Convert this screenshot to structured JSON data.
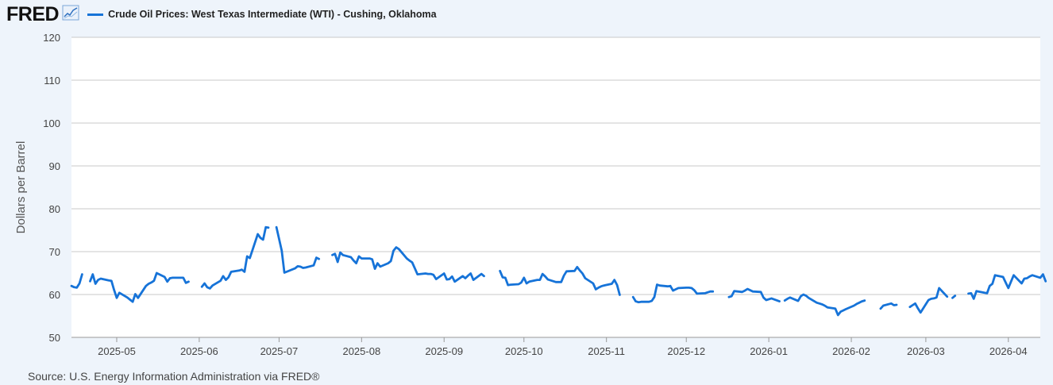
{
  "header": {
    "logo_text": "FRED",
    "logo_icon": "line-chart-icon"
  },
  "colors": {
    "series": "#1673d8",
    "grid": "#c8c8c8",
    "plot_background": "#ffffff",
    "page_background": "#eef4fb"
  },
  "source": "Source: U.S. Energy Information Administration via FRED®",
  "chart_data": {
    "type": "line",
    "title": "Crude Oil Prices: West Texas Intermediate (WTI) - Cushing, Oklahoma",
    "ylabel": "Dollars per Barrel",
    "xlabel": "",
    "ylim": [
      50,
      120
    ],
    "yticks": [
      50,
      60,
      70,
      80,
      90,
      100,
      110,
      120
    ],
    "xlim": [
      "2025-04-14",
      "2026-04-13"
    ],
    "xticks": [
      "2025-05",
      "2025-06",
      "2025-07",
      "2025-08",
      "2025-09",
      "2025-10",
      "2025-11",
      "2025-12",
      "2026-01",
      "2026-02",
      "2026-03",
      "2026-04"
    ],
    "grid": true,
    "legend": "top-left",
    "series": [
      {
        "name": "Crude Oil Prices: West Texas Intermediate (WTI) - Cushing, Oklahoma",
        "segments": [
          [
            [
              "2025-04-14",
              62.0
            ],
            [
              "2025-04-15",
              61.7
            ],
            [
              "2025-04-16",
              61.6
            ],
            [
              "2025-04-17",
              62.6
            ],
            [
              "2025-04-18",
              64.7
            ]
          ],
          [
            [
              "2025-04-21",
              63.1
            ],
            [
              "2025-04-22",
              64.7
            ],
            [
              "2025-04-23",
              62.5
            ],
            [
              "2025-04-24",
              63.4
            ],
            [
              "2025-04-25",
              63.7
            ],
            [
              "2025-04-28",
              63.3
            ],
            [
              "2025-04-29",
              63.2
            ],
            [
              "2025-04-30",
              61.1
            ],
            [
              "2025-05-01",
              59.2
            ],
            [
              "2025-05-02",
              60.4
            ],
            [
              "2025-05-05",
              59.3
            ],
            [
              "2025-05-06",
              58.8
            ],
            [
              "2025-05-07",
              58.3
            ],
            [
              "2025-05-08",
              60.1
            ],
            [
              "2025-05-09",
              59.2
            ],
            [
              "2025-05-12",
              62.0
            ],
            [
              "2025-05-13",
              62.5
            ],
            [
              "2025-05-14",
              62.8
            ],
            [
              "2025-05-15",
              63.2
            ],
            [
              "2025-05-16",
              65.0
            ],
            [
              "2025-05-19",
              64.1
            ],
            [
              "2025-05-20",
              63.0
            ],
            [
              "2025-05-21",
              63.8
            ],
            [
              "2025-05-22",
              63.9
            ],
            [
              "2025-05-23",
              63.9
            ],
            [
              "2025-05-26",
              63.9
            ],
            [
              "2025-05-27",
              62.7
            ],
            [
              "2025-05-28",
              63.0
            ]
          ],
          [
            [
              "2025-06-02",
              61.8
            ],
            [
              "2025-06-03",
              62.6
            ],
            [
              "2025-06-04",
              61.7
            ],
            [
              "2025-06-05",
              61.4
            ],
            [
              "2025-06-06",
              62.1
            ],
            [
              "2025-06-09",
              63.2
            ],
            [
              "2025-06-10",
              64.3
            ],
            [
              "2025-06-11",
              63.4
            ],
            [
              "2025-06-12",
              64.0
            ],
            [
              "2025-06-13",
              65.3
            ],
            [
              "2025-06-16",
              65.6
            ],
            [
              "2025-06-17",
              65.8
            ],
            [
              "2025-06-18",
              65.3
            ],
            [
              "2025-06-19",
              68.9
            ],
            [
              "2025-06-20",
              68.5
            ],
            [
              "2025-06-23",
              74.1
            ],
            [
              "2025-06-24",
              73.2
            ],
            [
              "2025-06-25",
              72.8
            ],
            [
              "2025-06-26",
              75.7
            ],
            [
              "2025-06-27",
              75.6
            ]
          ],
          [
            [
              "2025-06-30",
              75.7
            ],
            [
              "2025-07-01",
              73.0
            ],
            [
              "2025-07-02",
              70.2
            ],
            [
              "2025-07-03",
              65.1
            ],
            [
              "2025-07-07",
              66.1
            ],
            [
              "2025-07-08",
              66.6
            ],
            [
              "2025-07-09",
              66.5
            ],
            [
              "2025-07-10",
              66.2
            ],
            [
              "2025-07-11",
              66.3
            ],
            [
              "2025-07-14",
              66.8
            ],
            [
              "2025-07-15",
              68.6
            ],
            [
              "2025-07-16",
              68.3
            ]
          ],
          [
            [
              "2025-07-21",
              69.2
            ],
            [
              "2025-07-22",
              69.5
            ],
            [
              "2025-07-23",
              67.6
            ],
            [
              "2025-07-24",
              69.8
            ],
            [
              "2025-07-25",
              69.2
            ],
            [
              "2025-07-28",
              68.7
            ],
            [
              "2025-07-29",
              67.9
            ],
            [
              "2025-07-30",
              67.3
            ],
            [
              "2025-07-31",
              68.9
            ],
            [
              "2025-08-01",
              68.4
            ],
            [
              "2025-08-04",
              68.4
            ],
            [
              "2025-08-05",
              68.2
            ],
            [
              "2025-08-06",
              66.0
            ],
            [
              "2025-08-07",
              67.3
            ],
            [
              "2025-08-08",
              66.5
            ],
            [
              "2025-08-11",
              67.3
            ],
            [
              "2025-08-12",
              67.8
            ],
            [
              "2025-08-13",
              70.2
            ],
            [
              "2025-08-14",
              71.0
            ],
            [
              "2025-08-15",
              70.6
            ],
            [
              "2025-08-18",
              68.4
            ],
            [
              "2025-08-19",
              67.9
            ],
            [
              "2025-08-20",
              67.5
            ],
            [
              "2025-08-21",
              66.1
            ],
            [
              "2025-08-22",
              64.7
            ],
            [
              "2025-08-25",
              64.9
            ],
            [
              "2025-08-26",
              64.8
            ],
            [
              "2025-08-27",
              64.8
            ],
            [
              "2025-08-28",
              64.6
            ],
            [
              "2025-08-29",
              63.6
            ],
            [
              "2025-09-01",
              64.9
            ],
            [
              "2025-09-02",
              63.5
            ],
            [
              "2025-09-03",
              63.6
            ],
            [
              "2025-09-04",
              64.2
            ],
            [
              "2025-09-05",
              63.0
            ],
            [
              "2025-09-08",
              64.3
            ],
            [
              "2025-09-09",
              63.8
            ],
            [
              "2025-09-10",
              64.4
            ],
            [
              "2025-09-11",
              64.9
            ],
            [
              "2025-09-12",
              63.4
            ],
            [
              "2025-09-15",
              64.8
            ],
            [
              "2025-09-16",
              64.3
            ]
          ],
          [
            [
              "2025-09-22",
              65.5
            ],
            [
              "2025-09-23",
              64.0
            ],
            [
              "2025-09-24",
              63.9
            ],
            [
              "2025-09-25",
              62.2
            ],
            [
              "2025-09-26",
              62.3
            ],
            [
              "2025-09-29",
              62.4
            ],
            [
              "2025-09-30",
              62.8
            ],
            [
              "2025-10-01",
              63.9
            ],
            [
              "2025-10-02",
              62.6
            ],
            [
              "2025-10-03",
              63.0
            ],
            [
              "2025-10-06",
              63.4
            ],
            [
              "2025-10-07",
              63.4
            ],
            [
              "2025-10-08",
              64.8
            ],
            [
              "2025-10-09",
              64.2
            ],
            [
              "2025-10-10",
              63.5
            ],
            [
              "2025-10-13",
              62.9
            ],
            [
              "2025-10-14",
              62.9
            ],
            [
              "2025-10-15",
              62.9
            ],
            [
              "2025-10-16",
              64.4
            ],
            [
              "2025-10-17",
              65.4
            ],
            [
              "2025-10-20",
              65.5
            ],
            [
              "2025-10-21",
              66.4
            ],
            [
              "2025-10-22",
              65.6
            ],
            [
              "2025-10-23",
              64.9
            ],
            [
              "2025-10-24",
              63.8
            ],
            [
              "2025-10-27",
              62.6
            ],
            [
              "2025-10-28",
              61.2
            ],
            [
              "2025-10-29",
              61.6
            ],
            [
              "2025-10-30",
              61.9
            ],
            [
              "2025-10-31",
              62.1
            ],
            [
              "2025-11-03",
              62.5
            ],
            [
              "2025-11-04",
              63.4
            ],
            [
              "2025-11-05",
              62.2
            ],
            [
              "2025-11-06",
              59.9
            ]
          ],
          [
            [
              "2025-11-11",
              59.4
            ],
            [
              "2025-11-12",
              58.4
            ],
            [
              "2025-11-13",
              58.2
            ],
            [
              "2025-11-14",
              58.3
            ],
            [
              "2025-11-17",
              58.3
            ],
            [
              "2025-11-18",
              58.5
            ],
            [
              "2025-11-19",
              59.4
            ],
            [
              "2025-11-20",
              62.3
            ],
            [
              "2025-11-21",
              62.1
            ],
            [
              "2025-11-24",
              61.9
            ],
            [
              "2025-11-25",
              62.0
            ],
            [
              "2025-11-26",
              60.9
            ],
            [
              "2025-11-27",
              61.2
            ],
            [
              "2025-11-28",
              61.5
            ],
            [
              "2025-12-01",
              61.6
            ],
            [
              "2025-12-02",
              61.6
            ],
            [
              "2025-12-03",
              61.5
            ],
            [
              "2025-12-04",
              61.0
            ],
            [
              "2025-12-05",
              60.2
            ],
            [
              "2025-12-08",
              60.3
            ],
            [
              "2025-12-09",
              60.5
            ],
            [
              "2025-12-10",
              60.7
            ],
            [
              "2025-12-11",
              60.7
            ]
          ],
          [
            [
              "2025-12-17",
              59.4
            ],
            [
              "2025-12-18",
              59.6
            ],
            [
              "2025-12-19",
              60.8
            ],
            [
              "2025-12-22",
              60.6
            ],
            [
              "2025-12-23",
              60.9
            ],
            [
              "2025-12-24",
              61.3
            ],
            [
              "2025-12-26",
              60.7
            ],
            [
              "2025-12-29",
              60.6
            ],
            [
              "2025-12-30",
              59.3
            ],
            [
              "2025-12-31",
              58.7
            ],
            [
              "2026-01-02",
              59.1
            ],
            [
              "2026-01-05",
              58.4
            ]
          ],
          [
            [
              "2026-01-07",
              58.6
            ],
            [
              "2026-01-08",
              59.0
            ],
            [
              "2026-01-09",
              59.3
            ],
            [
              "2026-01-12",
              58.5
            ],
            [
              "2026-01-13",
              59.6
            ],
            [
              "2026-01-14",
              60.0
            ],
            [
              "2026-01-15",
              59.7
            ],
            [
              "2026-01-16",
              59.2
            ],
            [
              "2026-01-19",
              58.1
            ],
            [
              "2026-01-20",
              57.9
            ],
            [
              "2026-01-21",
              57.7
            ],
            [
              "2026-01-22",
              57.4
            ],
            [
              "2026-01-23",
              57.0
            ],
            [
              "2026-01-26",
              56.7
            ],
            [
              "2026-01-27",
              55.2
            ],
            [
              "2026-01-28",
              56.0
            ],
            [
              "2026-01-29",
              56.3
            ],
            [
              "2026-01-30",
              56.6
            ],
            [
              "2026-02-02",
              57.4
            ],
            [
              "2026-02-03",
              57.8
            ],
            [
              "2026-02-04",
              58.1
            ],
            [
              "2026-02-05",
              58.4
            ],
            [
              "2026-02-06",
              58.6
            ]
          ],
          [
            [
              "2026-02-12",
              56.7
            ],
            [
              "2026-02-13",
              57.4
            ],
            [
              "2026-02-16",
              57.9
            ],
            [
              "2026-02-17",
              57.5
            ],
            [
              "2026-02-18",
              57.6
            ]
          ],
          [
            [
              "2026-02-23",
              57.1
            ],
            [
              "2026-02-24",
              57.5
            ],
            [
              "2026-02-25",
              57.9
            ],
            [
              "2026-02-26",
              56.8
            ],
            [
              "2026-02-27",
              55.8
            ],
            [
              "2026-03-02",
              58.7
            ],
            [
              "2026-03-03",
              59.0
            ],
            [
              "2026-03-04",
              59.1
            ],
            [
              "2026-03-05",
              59.3
            ],
            [
              "2026-03-06",
              61.5
            ],
            [
              "2026-03-09",
              59.5
            ]
          ],
          [
            [
              "2026-03-11",
              59.2
            ],
            [
              "2026-03-12",
              59.7
            ]
          ],
          [
            [
              "2026-03-17",
              60.2
            ],
            [
              "2026-03-18",
              60.3
            ],
            [
              "2026-03-19",
              59.0
            ],
            [
              "2026-03-20",
              60.8
            ],
            [
              "2026-03-23",
              60.4
            ],
            [
              "2026-03-24",
              60.3
            ],
            [
              "2026-03-25",
              62.0
            ],
            [
              "2026-03-26",
              62.5
            ],
            [
              "2026-03-27",
              64.5
            ],
            [
              "2026-03-30",
              64.1
            ],
            [
              "2026-03-31",
              62.8
            ],
            [
              "2026-04-01",
              61.5
            ],
            [
              "2026-04-02",
              63.0
            ],
            [
              "2026-04-03",
              64.5
            ],
            [
              "2026-04-06",
              62.6
            ],
            [
              "2026-04-07",
              63.7
            ],
            [
              "2026-04-08",
              63.8
            ],
            [
              "2026-04-09",
              64.2
            ],
            [
              "2026-04-10",
              64.5
            ],
            [
              "2026-04-13",
              63.9
            ],
            [
              "2026-04-14",
              64.7
            ],
            [
              "2026-04-15",
              63.1
            ]
          ],
          [
            [
              "2026-04-16",
              62.9
            ]
          ]
        ]
      }
    ]
  }
}
